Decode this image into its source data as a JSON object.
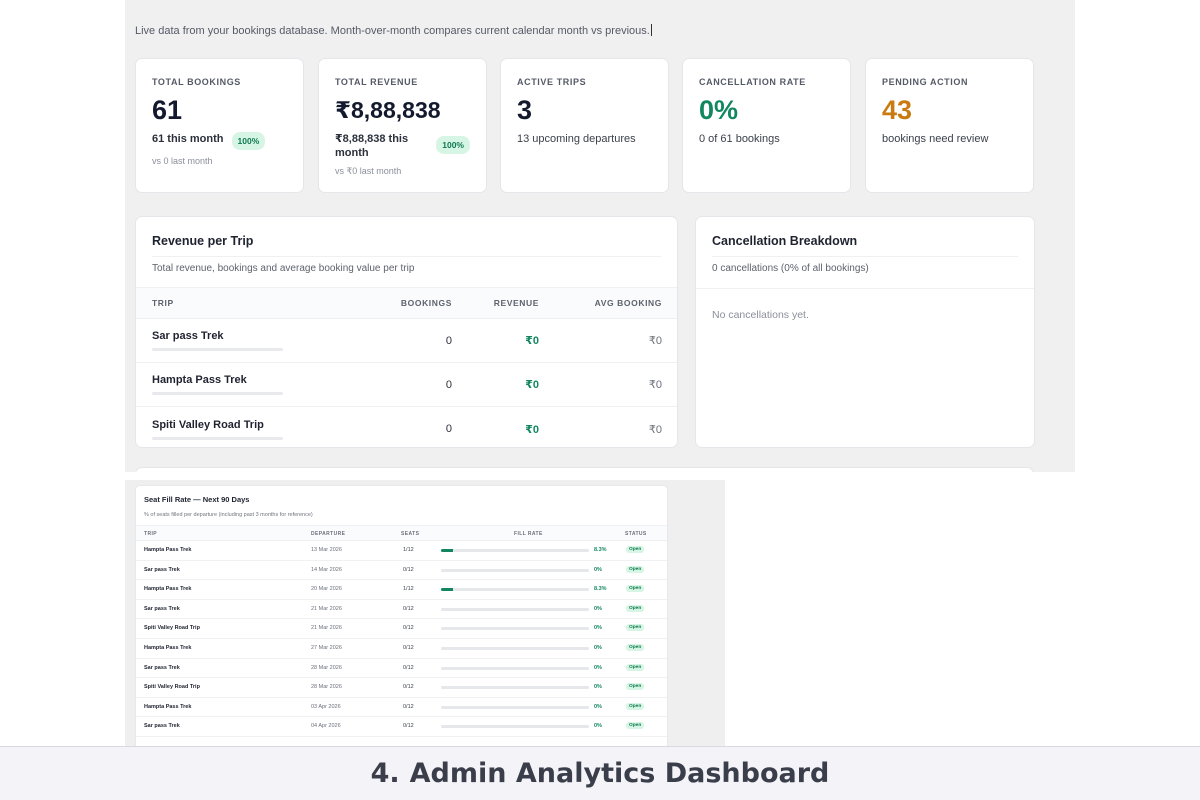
{
  "page": {
    "subtitle": "Live data from your bookings database. Month-over-month compares current calendar month vs previous."
  },
  "kpis": [
    {
      "label": "TOTAL BOOKINGS",
      "value": "61",
      "main": "61 this month",
      "badge": "100%",
      "sub": "vs 0 last month",
      "color": "#141a2e"
    },
    {
      "label": "TOTAL REVENUE",
      "value": "₹8,88,838",
      "main": "₹8,88,838 this month",
      "badge": "100%",
      "sub": "vs ₹0 last month",
      "color": "#141a2e"
    },
    {
      "label": "ACTIVE TRIPS",
      "value": "3",
      "main": "13 upcoming departures",
      "color": "#141a2e"
    },
    {
      "label": "CANCELLATION RATE",
      "value": "0%",
      "main": "0 of 61 bookings",
      "color": "#12875f"
    },
    {
      "label": "PENDING ACTION",
      "value": "43",
      "main": "bookings need review",
      "color": "#c97b0f"
    }
  ],
  "revenue_panel": {
    "title": "Revenue per Trip",
    "desc": "Total revenue, bookings and average booking value per trip",
    "headers": {
      "trip": "TRIP",
      "bookings": "BOOKINGS",
      "revenue": "REVENUE",
      "avg": "AVG BOOKING"
    },
    "rows": [
      {
        "trip": "Sar pass Trek",
        "bookings": "0",
        "revenue": "₹0",
        "avg": "₹0"
      },
      {
        "trip": "Hampta Pass Trek",
        "bookings": "0",
        "revenue": "₹0",
        "avg": "₹0"
      },
      {
        "trip": "Spiti Valley Road Trip",
        "bookings": "0",
        "revenue": "₹0",
        "avg": "₹0"
      }
    ]
  },
  "cancellation_panel": {
    "title": "Cancellation Breakdown",
    "desc": "0 cancellations (0% of all bookings)",
    "empty": "No cancellations yet."
  },
  "fill_panel": {
    "title": "Seat Fill Rate — Next 90 Days",
    "desc": "% of seats filled per departure (including past 3 months for reference)",
    "headers": {
      "trip": "TRIP",
      "departure": "DEPARTURE",
      "seats": "SEATS",
      "fill": "FILL RATE",
      "status": "STATUS"
    },
    "rows": [
      {
        "trip": "Hampta Pass Trek",
        "departure": "13 Mar 2026",
        "seats": "1/12",
        "fill_pct": 8.3,
        "fill_label": "8.3%",
        "status": "Open"
      },
      {
        "trip": "Sar pass Trek",
        "departure": "14 Mar 2026",
        "seats": "0/12",
        "fill_pct": 0,
        "fill_label": "0%",
        "status": "Open"
      },
      {
        "trip": "Hampta Pass Trek",
        "departure": "20 Mar 2026",
        "seats": "1/12",
        "fill_pct": 8.3,
        "fill_label": "8.3%",
        "status": "Open"
      },
      {
        "trip": "Sar pass Trek",
        "departure": "21 Mar 2026",
        "seats": "0/12",
        "fill_pct": 0,
        "fill_label": "0%",
        "status": "Open"
      },
      {
        "trip": "Spiti Valley Road Trip",
        "departure": "21 Mar 2026",
        "seats": "0/12",
        "fill_pct": 0,
        "fill_label": "0%",
        "status": "Open"
      },
      {
        "trip": "Hampta Pass Trek",
        "departure": "27 Mar 2026",
        "seats": "0/12",
        "fill_pct": 0,
        "fill_label": "0%",
        "status": "Open"
      },
      {
        "trip": "Sar pass Trek",
        "departure": "28 Mar 2026",
        "seats": "0/12",
        "fill_pct": 0,
        "fill_label": "0%",
        "status": "Open"
      },
      {
        "trip": "Spiti Valley Road Trip",
        "departure": "28 Mar 2026",
        "seats": "0/12",
        "fill_pct": 0,
        "fill_label": "0%",
        "status": "Open"
      },
      {
        "trip": "Hampta Pass Trek",
        "departure": "03 Apr 2026",
        "seats": "0/12",
        "fill_pct": 0,
        "fill_label": "0%",
        "status": "Open"
      },
      {
        "trip": "Sar pass Trek",
        "departure": "04 Apr 2026",
        "seats": "0/12",
        "fill_pct": 0,
        "fill_label": "0%",
        "status": "Open"
      }
    ]
  },
  "caption": {
    "number": "4.",
    "text": "Admin Analytics Dashboard"
  },
  "colors": {
    "accent_green": "#12875f",
    "amber": "#c97b0f",
    "badge_bg": "#d6f5e4"
  }
}
